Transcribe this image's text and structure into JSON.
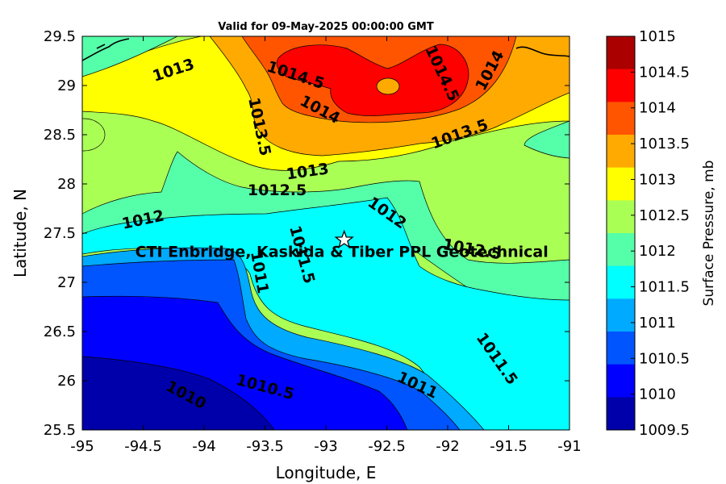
{
  "title": "Valid for 09-May-2025 00:00:00 GMT",
  "xlabel": "Longitude, E",
  "ylabel": "Latitude, N",
  "colorbar_label": "Surface Pressure, mb",
  "x_ticks": [
    "-95",
    "-94.5",
    "-94",
    "-93.5",
    "-93",
    "-92.5",
    "-92",
    "-91.5",
    "-91"
  ],
  "y_ticks": [
    "29.5",
    "29",
    "28.5",
    "28",
    "27.5",
    "27",
    "26.5",
    "26",
    "25.5"
  ],
  "colorbar_ticks": [
    "1015",
    "1014.5",
    "1014",
    "1013.5",
    "1013",
    "1012.5",
    "1012",
    "1011.5",
    "1011",
    "1010.5",
    "1010",
    "1009.5"
  ],
  "colorbar_colors": [
    "#aa0000",
    "#ff0000",
    "#ff5500",
    "#ffaa00",
    "#ffff00",
    "#aaff55",
    "#55ffaa",
    "#00ffff",
    "#00aaff",
    "#0055ff",
    "#0000ff",
    "#0000aa"
  ],
  "site": {
    "label": "CTI Enbridge, Kaskida & Tiber PPL Geotechnical",
    "lon": -92.85,
    "lat": 27.43,
    "marker": "star-icon"
  },
  "chart_data": {
    "type": "heatmap",
    "subtype": "filled-contour map",
    "variable": "Surface Pressure, mb",
    "xlim": [
      -95,
      -91
    ],
    "ylim": [
      25.5,
      29.5
    ],
    "clim": [
      1009.5,
      1015
    ],
    "contour_interval": 0.5,
    "grid": false,
    "colorbar_position": "right",
    "contour_labels": [
      {
        "text": "1013",
        "lon": -94.25,
        "lat": 29.15
      },
      {
        "text": "1014.5",
        "lon": -93.25,
        "lat": 29.1
      },
      {
        "text": "1014.5",
        "lon": -92.05,
        "lat": 29.12
      },
      {
        "text": "1014",
        "lon": -91.65,
        "lat": 29.15
      },
      {
        "text": "1014",
        "lon": -93.05,
        "lat": 28.75
      },
      {
        "text": "1013.5",
        "lon": -93.55,
        "lat": 28.58
      },
      {
        "text": "1013.5",
        "lon": -91.9,
        "lat": 28.5
      },
      {
        "text": "1013",
        "lon": -93.15,
        "lat": 28.12
      },
      {
        "text": "1012.5",
        "lon": -93.4,
        "lat": 27.93
      },
      {
        "text": "1012",
        "lon": -94.5,
        "lat": 27.63
      },
      {
        "text": "1012",
        "lon": -92.5,
        "lat": 27.7
      },
      {
        "text": "1012.5",
        "lon": -91.8,
        "lat": 27.33
      },
      {
        "text": "1011.5",
        "lon": -93.2,
        "lat": 27.28
      },
      {
        "text": "1011",
        "lon": -93.55,
        "lat": 27.1
      },
      {
        "text": "1011.5",
        "lon": -91.6,
        "lat": 26.22
      },
      {
        "text": "1011",
        "lon": -92.25,
        "lat": 25.95
      },
      {
        "text": "1010.5",
        "lon": -93.5,
        "lat": 25.93
      },
      {
        "text": "1010",
        "lon": -94.15,
        "lat": 25.85
      }
    ]
  }
}
